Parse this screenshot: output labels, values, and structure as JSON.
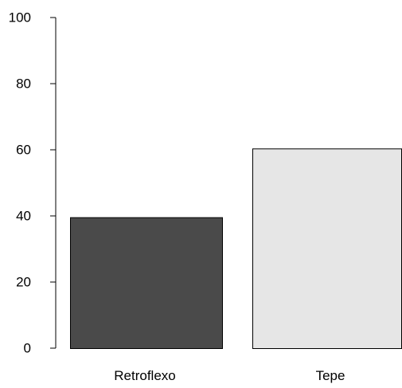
{
  "chart_data": {
    "type": "bar",
    "categories": [
      "Retroflexo",
      "Tepe"
    ],
    "values": [
      39.6,
      60.4
    ],
    "colors": [
      "#4a4a4a",
      "#e6e6e6"
    ],
    "bar_border_color": "#000000",
    "ylim": [
      0,
      100
    ],
    "yticks": [
      0,
      20,
      40,
      60,
      80,
      100
    ],
    "ytick_labels": [
      "0",
      "20",
      "40",
      "60",
      "80",
      "100"
    ],
    "title": "",
    "xlabel": "",
    "ylabel": "",
    "grid": false,
    "legend": "none"
  }
}
